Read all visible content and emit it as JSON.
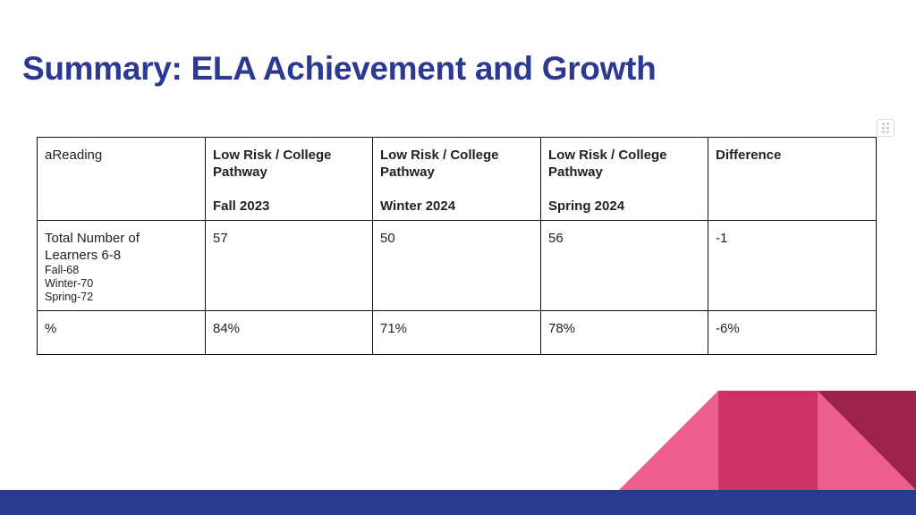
{
  "title": "Summary: ELA Achievement and Growth",
  "table": {
    "header": {
      "label": "aReading",
      "cols": [
        {
          "line1": "Low Risk / College",
          "line2": "Pathway",
          "term": "Fall 2023"
        },
        {
          "line1": "Low Risk / College",
          "line2": "Pathway",
          "term": "Winter 2024"
        },
        {
          "line1": "Low Risk / College",
          "line2": "Pathway",
          "term": "Spring 2024"
        }
      ],
      "difference": "Difference"
    },
    "count_row": {
      "label_line1": "Total Number of",
      "label_line2": "Learners 6-8",
      "sub": [
        "Fall-68",
        "Winter-70",
        "Spring-72"
      ],
      "values": [
        "57",
        "50",
        "56",
        "-1"
      ]
    },
    "pct_row": {
      "label": "%",
      "values": [
        "84%",
        "71%",
        "78%",
        "-6%"
      ]
    }
  },
  "colors": {
    "title": "#2b3990",
    "bottom_bar": "#2b3990",
    "pink_light": "#ec5f8e",
    "pink_mid": "#d03164",
    "maroon": "#9b2249"
  },
  "icons": {
    "table_handle": "drag-handle-icon"
  }
}
